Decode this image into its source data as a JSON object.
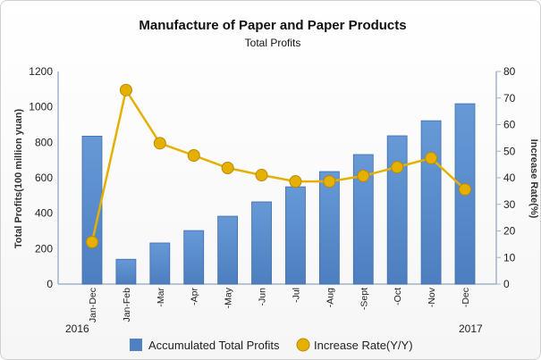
{
  "chart_data": {
    "type": "bar",
    "title": "Manufacture of Paper and Paper Products",
    "subtitle": "Total Profits",
    "categories": [
      "Jan-Dec",
      "Jan-Feb",
      "-Mar",
      "-Apr",
      "-May",
      "-Jun",
      "-Jul",
      "-Aug",
      "-Sept",
      "-Oct",
      "-Nov",
      "-Dec"
    ],
    "year_labels": [
      "2016",
      "2017"
    ],
    "ylabel": "Total Profits(100 million yuan)",
    "y2label": "Increase Rate(%)",
    "ylim": [
      0,
      1200
    ],
    "y2lim": [
      0,
      80
    ],
    "yticks": [
      0,
      200,
      400,
      600,
      800,
      1000,
      1200
    ],
    "y2ticks": [
      0,
      10,
      20,
      30,
      40,
      50,
      60,
      70,
      80
    ],
    "series": [
      {
        "name": "Accumulated Total Profits",
        "type": "bar",
        "axis": "left",
        "color": "#5b8fd0",
        "values": [
          835,
          140,
          232,
          302,
          383,
          464,
          549,
          635,
          731,
          837,
          922,
          1018
        ]
      },
      {
        "name": "Increase Rate(Y/Y)",
        "type": "line",
        "axis": "right",
        "color": "#e6b000",
        "values": [
          15.8,
          73,
          53,
          48.4,
          43.7,
          41,
          38.6,
          38.6,
          40.7,
          44,
          47.4,
          35.6
        ]
      }
    ],
    "legend": "bottom"
  }
}
